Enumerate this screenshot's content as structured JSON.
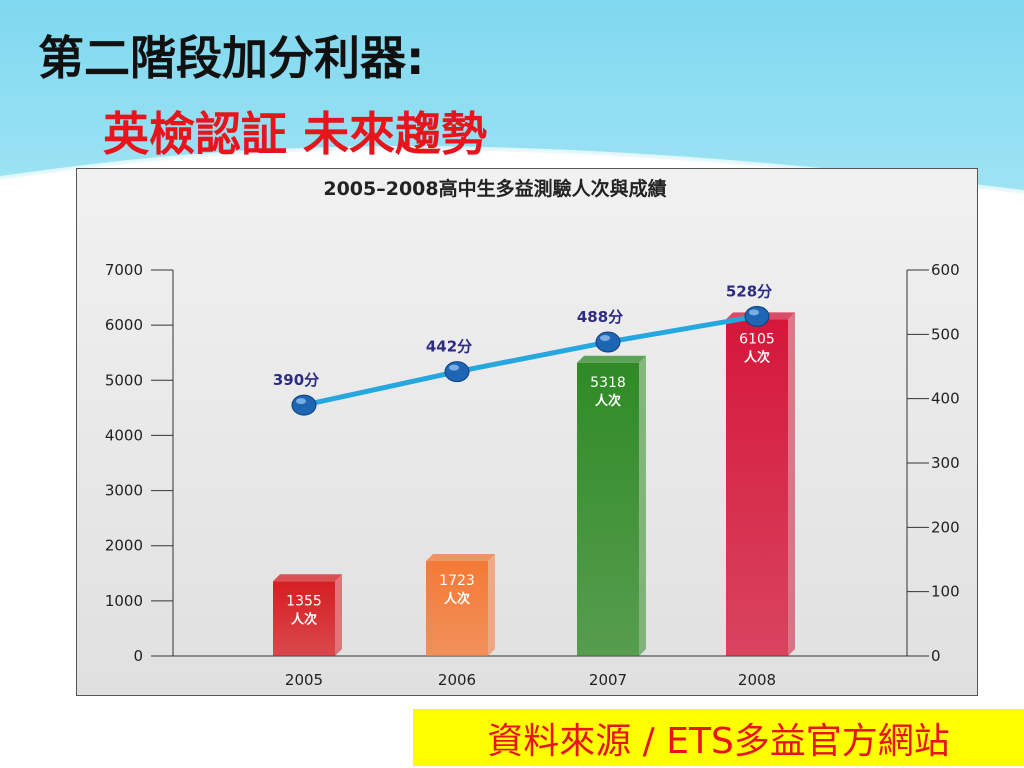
{
  "slide": {
    "heading": "第二階段加分利器:",
    "subheading": "英檢認証  未來趨勢",
    "source_note": "資料來源 / ETS多益官方網站"
  },
  "colors": {
    "heading": "#111111",
    "subheading": "#e8141c",
    "slide_top_band": "#7fd8ef",
    "line": "#27a7e0",
    "marker": "#1e66b4",
    "score_label": "#2e2c82",
    "source_bg": "#ffff00",
    "source_text": "#e8141c"
  },
  "chart_data": {
    "type": "bar",
    "title": "2005–2008高中生多益測驗人次與成績",
    "categories": [
      "2005",
      "2006",
      "2007",
      "2008"
    ],
    "series": [
      {
        "axis": "left",
        "values": [
          1355,
          1723,
          5318,
          6105
        ],
        "labels": [
          "1355",
          "1723",
          "5318",
          "6105"
        ],
        "unit_label": "人次",
        "colors": [
          "#d61e22",
          "#f47a35",
          "#2f8a25",
          "#d5173a"
        ]
      },
      {
        "axis": "right",
        "type": "line",
        "values": [
          390,
          442,
          488,
          528
        ],
        "labels": [
          "390分",
          "442分",
          "488分",
          "528分"
        ]
      }
    ],
    "y_left": {
      "range": [
        0,
        7000
      ],
      "ticks": [
        "0",
        "1000",
        "2000",
        "3000",
        "4000",
        "5000",
        "6000",
        "7000"
      ]
    },
    "y_right": {
      "range": [
        0,
        600
      ],
      "ticks": [
        "0",
        "100",
        "200",
        "300",
        "400",
        "500",
        "600"
      ]
    },
    "grid": false,
    "legend": "none"
  }
}
